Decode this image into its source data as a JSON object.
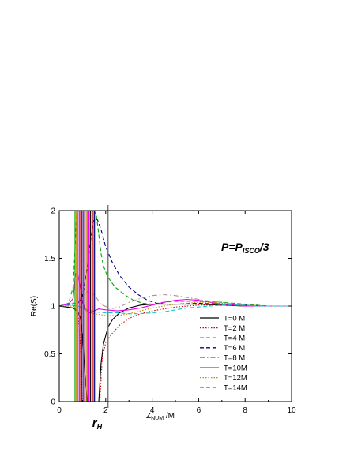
{
  "chart_data": {
    "type": "line",
    "title": "",
    "xlabel": {
      "main": "Z",
      "sub": "NUM",
      "suffix": " /M"
    },
    "ylabel": "Re(S)",
    "xlim": [
      0,
      10
    ],
    "ylim": [
      0,
      2
    ],
    "xticks": [
      0,
      2,
      4,
      6,
      8,
      10
    ],
    "yticks": [
      0,
      0.5,
      1,
      1.5,
      2
    ],
    "xtick_labels": [
      "0",
      "2",
      "4",
      "6",
      "8",
      "10"
    ],
    "ytick_labels": [
      "0",
      "0.5",
      "1",
      "1.5",
      "2"
    ],
    "annotation": {
      "main": "P=P",
      "sub": "ISCO",
      "suffix": "/3"
    },
    "marker_label": {
      "main": "r",
      "sub": "H"
    },
    "marker_x": 2.1,
    "legend_position": "bottom-right",
    "series": [
      {
        "name": "T=0 M",
        "color": "#000000",
        "dash": "solid",
        "x": [
          0,
          0.3,
          0.6,
          0.8,
          0.9,
          1.0,
          1.1,
          1.2,
          1.3,
          1.45,
          1.55,
          1.7,
          1.8,
          1.9,
          2.1,
          2.3,
          2.6,
          3.0,
          3.5,
          4.0,
          4.5,
          5.0,
          6.0,
          7.0,
          8.0,
          9.0,
          10.0
        ],
        "y": [
          1.0,
          0.99,
          0.98,
          0.94,
          0.88,
          0.7,
          0.3,
          0.0,
          0.0,
          0.0,
          0.0,
          0.0,
          0.4,
          0.6,
          0.78,
          0.86,
          0.93,
          0.98,
          1.01,
          1.02,
          1.02,
          1.02,
          1.02,
          1.01,
          1.0,
          1.0,
          1.0
        ]
      },
      {
        "name": "T=2 M",
        "color": "#cc0000",
        "dash": "dotted",
        "x": [
          0,
          0.6,
          0.8,
          0.9,
          1.0,
          1.5,
          1.75,
          1.85,
          2.0,
          2.3,
          2.6,
          3.0,
          3.5,
          4.0,
          5.0,
          6.0,
          7.0,
          8.0,
          9.0,
          10.0
        ],
        "y": [
          1.0,
          1.0,
          0.95,
          0.6,
          0.0,
          0.0,
          0.0,
          0.45,
          0.62,
          0.72,
          0.8,
          0.87,
          0.92,
          0.95,
          0.99,
          1.01,
          1.01,
          1.0,
          1.0,
          1.0
        ]
      },
      {
        "name": "T=4 M",
        "color": "#00aa00",
        "dash": "dashed",
        "x": [
          0,
          0.4,
          0.6,
          0.7,
          0.75,
          0.9,
          1.5,
          1.6,
          1.7,
          1.8,
          1.9,
          2.1,
          2.4,
          2.8,
          3.2,
          3.6,
          4.0,
          4.5,
          5.0,
          6.0,
          7.0,
          8.0,
          9.0,
          10.0
        ],
        "y": [
          1.0,
          1.03,
          1.2,
          1.7,
          2.0,
          2.0,
          2.0,
          1.95,
          1.75,
          1.55,
          1.42,
          1.3,
          1.2,
          1.12,
          1.06,
          1.03,
          1.02,
          1.04,
          1.05,
          1.05,
          1.04,
          1.02,
          1.0,
          1.0
        ]
      },
      {
        "name": "T=6 M",
        "color": "#000080",
        "dash": "dashed",
        "x": [
          0,
          0.8,
          1.0,
          1.2,
          1.35,
          1.45,
          1.55,
          1.65,
          1.8,
          2.0,
          2.3,
          2.6,
          3.0,
          3.4,
          3.8,
          4.2,
          4.6,
          5.0,
          6.0,
          7.0,
          8.0,
          9.0,
          10.0
        ],
        "y": [
          1.0,
          1.03,
          1.1,
          1.4,
          1.7,
          1.87,
          1.92,
          1.9,
          1.8,
          1.62,
          1.45,
          1.32,
          1.2,
          1.12,
          1.06,
          1.03,
          1.02,
          1.02,
          1.03,
          1.02,
          1.01,
          1.0,
          1.0
        ]
      },
      {
        "name": "T=8 M",
        "color": "#b09090",
        "dash": "dashdot",
        "x": [
          0,
          0.5,
          0.8,
          1.0,
          1.2,
          1.5,
          1.8,
          2.2,
          2.6,
          3.0,
          3.5,
          4.0,
          4.5,
          5.0,
          5.5,
          6.0,
          6.5,
          7.0,
          7.5,
          8.0,
          9.0,
          10.0
        ],
        "y": [
          1.0,
          1.02,
          1.05,
          1.1,
          1.15,
          1.12,
          1.02,
          0.97,
          0.99,
          1.04,
          1.08,
          1.11,
          1.12,
          1.11,
          1.09,
          1.07,
          1.05,
          1.04,
          1.02,
          1.01,
          1.0,
          1.0
        ]
      },
      {
        "name": "T=10M",
        "color": "#ee00ee",
        "dash": "solid",
        "x": [
          0,
          0.4,
          0.6,
          0.7,
          0.8,
          0.9,
          1.0,
          1.1,
          1.2,
          1.3,
          1.5,
          1.7,
          2.0,
          2.5,
          3.0,
          3.5,
          4.0,
          4.5,
          5.0,
          5.5,
          6.0,
          6.5,
          7.0,
          7.5,
          8.0,
          9.0,
          10.0
        ],
        "y": [
          1.0,
          1.02,
          1.08,
          1.34,
          1.33,
          1.2,
          1.05,
          0.97,
          0.95,
          0.93,
          0.95,
          0.97,
          0.96,
          0.95,
          0.96,
          0.98,
          1.01,
          1.04,
          1.06,
          1.07,
          1.06,
          1.04,
          1.02,
          1.01,
          1.0,
          1.0,
          1.0
        ]
      },
      {
        "name": "T=12M",
        "color": "#cc8800",
        "dash": "dotted",
        "x": [
          0,
          0.5,
          0.8,
          1.0,
          1.2,
          1.5,
          1.8,
          2.0,
          2.5,
          3.0,
          3.5,
          4.0,
          4.5,
          5.0,
          5.5,
          6.0,
          6.5,
          7.0,
          7.5,
          8.0,
          9.0,
          10.0
        ],
        "y": [
          1.0,
          1.0,
          1.0,
          0.98,
          0.94,
          0.92,
          0.91,
          0.9,
          0.9,
          0.92,
          0.95,
          0.98,
          1.0,
          1.02,
          1.03,
          1.04,
          1.04,
          1.03,
          1.02,
          1.01,
          1.0,
          1.0
        ]
      },
      {
        "name": "T=14M",
        "color": "#00cccc",
        "dash": "dashed",
        "x": [
          0,
          0.5,
          0.8,
          1.0,
          1.5,
          2.0,
          2.5,
          3.0,
          3.5,
          4.0,
          4.5,
          5.0,
          5.5,
          6.0,
          6.5,
          7.0,
          7.5,
          8.0,
          8.5,
          9.0,
          10.0
        ],
        "y": [
          1.0,
          1.01,
          1.0,
          0.98,
          0.94,
          0.93,
          0.93,
          0.92,
          0.92,
          0.93,
          0.94,
          0.96,
          0.98,
          0.99,
          1.0,
          1.01,
          1.01,
          1.01,
          1.0,
          1.0,
          1.0
        ]
      }
    ],
    "near_horizon_oscillations": [
      {
        "x": 0.68,
        "color": "#00aa00"
      },
      {
        "x": 0.74,
        "color": "#cc8800"
      },
      {
        "x": 0.8,
        "color": "#00cccc"
      },
      {
        "x": 0.86,
        "color": "#ee00ee"
      },
      {
        "x": 0.92,
        "color": "#cc0000"
      },
      {
        "x": 0.98,
        "color": "#000080"
      },
      {
        "x": 1.04,
        "color": "#ee00ee"
      },
      {
        "x": 1.1,
        "color": "#000000"
      },
      {
        "x": 1.16,
        "color": "#cc8800"
      },
      {
        "x": 1.22,
        "color": "#00aa00"
      },
      {
        "x": 1.28,
        "color": "#ee00ee"
      },
      {
        "x": 1.34,
        "color": "#000000"
      },
      {
        "x": 1.4,
        "color": "#00cccc"
      },
      {
        "x": 1.46,
        "color": "#cc0000"
      },
      {
        "x": 1.52,
        "color": "#000080"
      }
    ]
  }
}
